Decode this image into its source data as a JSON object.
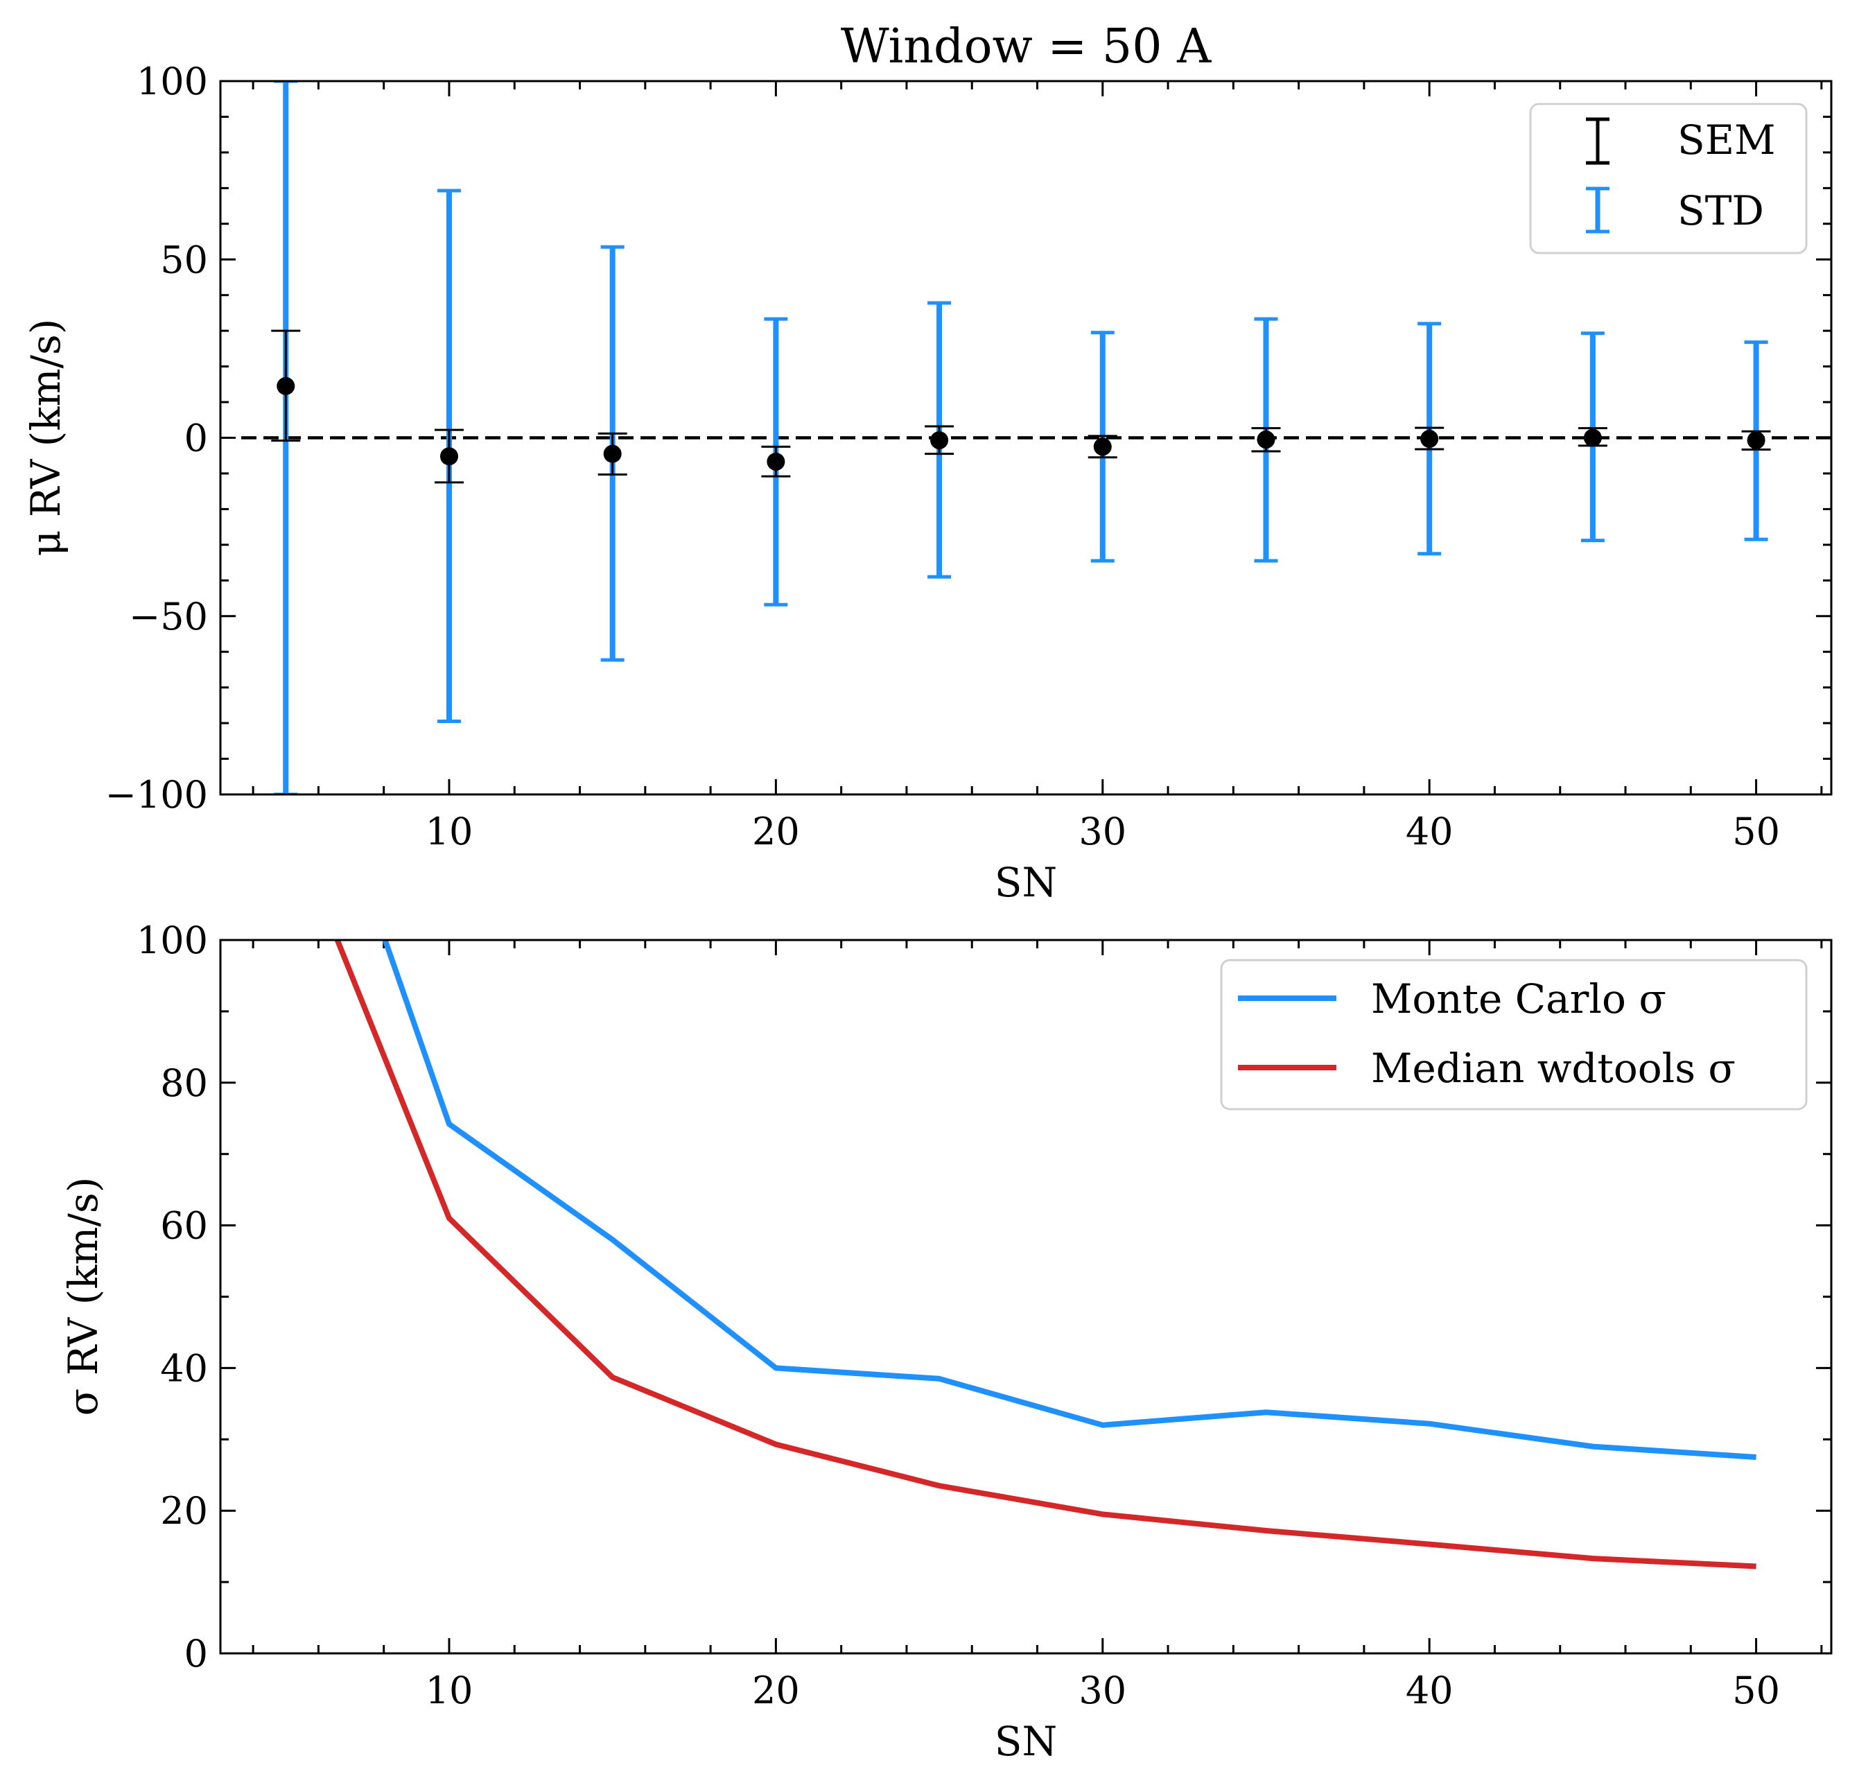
{
  "chart_data": [
    {
      "type": "scatter",
      "title": "Window = 50 A",
      "xlabel": "SN",
      "ylabel": "μ RV (km/s)",
      "xlim": [
        3,
        52.3
      ],
      "ylim": [
        -100,
        100
      ],
      "xticks": [
        10,
        20,
        30,
        40,
        50
      ],
      "yticks": [
        -100,
        -50,
        0,
        50,
        100
      ],
      "tick_labels_x": [
        "10",
        "20",
        "30",
        "40",
        "50"
      ],
      "tick_labels_y": [
        "−100",
        "−50",
        "0",
        "50",
        "100"
      ],
      "reference_line": 0,
      "legend": {
        "placement": "top-right",
        "entries": [
          {
            "label": "SEM",
            "color": "#000000"
          },
          {
            "label": "STD",
            "color": "#1e90ff"
          }
        ]
      },
      "x": [
        5,
        10,
        15,
        20,
        25,
        30,
        35,
        40,
        45,
        50
      ],
      "mean": [
        14.5,
        -5.2,
        -4.5,
        -6.7,
        -0.7,
        -2.5,
        -0.5,
        -0.3,
        0,
        -0.7
      ],
      "sem_lower": [
        -0.8,
        -12.5,
        -10.3,
        -10.8,
        -4.5,
        -5.5,
        -3.8,
        -3.2,
        -2.2,
        -3.3
      ],
      "sem_upper": [
        30,
        2.2,
        1.2,
        -2.5,
        3.2,
        0.5,
        2.7,
        2.8,
        2.7,
        1.8
      ],
      "std_lower": [
        -100,
        -79.5,
        -62.3,
        -46.8,
        -39,
        -34.5,
        -34.5,
        -32.5,
        -28.8,
        -28.5
      ],
      "std_upper": [
        100,
        69.3,
        53.5,
        33.3,
        37.8,
        29.5,
        33.3,
        32,
        29.3,
        26.8
      ],
      "colors": {
        "sem": "#000000",
        "std": "#1e90ff",
        "marker": "#000000"
      }
    },
    {
      "type": "line",
      "xlabel": "SN",
      "ylabel": "σ RV (km/s)",
      "xlim": [
        3,
        52.3
      ],
      "ylim": [
        0,
        100
      ],
      "xticks": [
        10,
        20,
        30,
        40,
        50
      ],
      "yticks": [
        0,
        20,
        40,
        60,
        80,
        100
      ],
      "tick_labels_x": [
        "10",
        "20",
        "30",
        "40",
        "50"
      ],
      "tick_labels_y": [
        "0",
        "20",
        "40",
        "60",
        "80",
        "100"
      ],
      "legend": {
        "placement": "top-right"
      },
      "x": [
        5,
        10,
        15,
        20,
        25,
        30,
        35,
        40,
        45,
        50
      ],
      "series": [
        {
          "name": "Monte Carlo σ",
          "color": "#1e90ff",
          "values": [
            140,
            74.2,
            58,
            40,
            38.5,
            32,
            33.8,
            32.2,
            29,
            27.5
          ]
        },
        {
          "name": "Median wdtools σ",
          "color": "#d62728",
          "values": [
            118,
            61,
            38.7,
            29.3,
            23.5,
            19.5,
            17.2,
            15.3,
            13.3,
            12.2
          ]
        }
      ]
    }
  ]
}
